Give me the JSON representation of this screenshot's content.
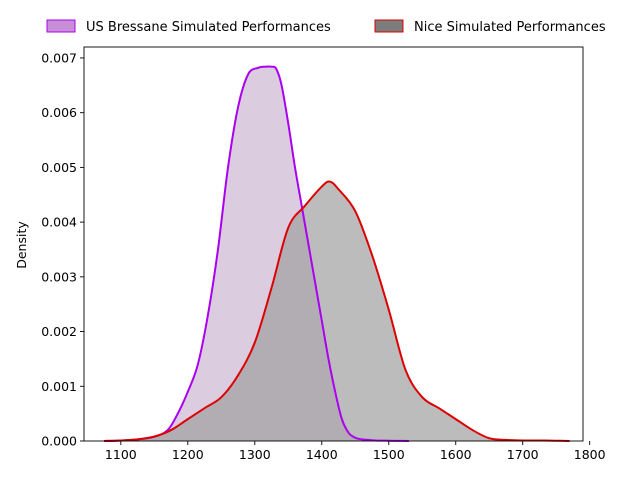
{
  "chart_data": {
    "type": "area",
    "title": "",
    "xlabel": "",
    "ylabel": "Density",
    "xlim": [
      1045,
      1790
    ],
    "ylim": [
      0,
      0.0072
    ],
    "xticks": [
      1100,
      1200,
      1300,
      1400,
      1500,
      1600,
      1700,
      1800
    ],
    "yticks": [
      0,
      0.001,
      0.002,
      0.003,
      0.004,
      0.005,
      0.006,
      0.007
    ],
    "xtick_labels": [
      "1100",
      "1200",
      "1300",
      "1400",
      "1500",
      "1600",
      "1700",
      "1800"
    ],
    "ytick_labels": [
      "0.000",
      "0.001",
      "0.002",
      "0.003",
      "0.004",
      "0.005",
      "0.006",
      "0.007"
    ],
    "grid": false,
    "legend_position": "top-center, outside plot",
    "series": [
      {
        "name": "US Bressane Simulated Performances",
        "line_color": "#aa00ee",
        "fill_color": "#dbcce0",
        "legend_fill": "#c88fd8",
        "x": [
          1075,
          1100,
          1125,
          1150,
          1170,
          1185,
          1200,
          1215,
          1230,
          1245,
          1260,
          1275,
          1290,
          1305,
          1315,
          1325,
          1332,
          1340,
          1350,
          1360,
          1370,
          1380,
          1390,
          1400,
          1410,
          1420,
          1430,
          1440,
          1450,
          1460,
          1470,
          1480,
          1500,
          1515,
          1530
        ],
        "y": [
          0,
          1e-05,
          3e-05,
          8e-05,
          0.0002,
          0.0005,
          0.0009,
          0.0014,
          0.0023,
          0.0035,
          0.005,
          0.0061,
          0.0067,
          0.00682,
          0.00684,
          0.00684,
          0.0068,
          0.0065,
          0.0058,
          0.005,
          0.0043,
          0.0036,
          0.0029,
          0.0022,
          0.0015,
          0.0009,
          0.0004,
          0.00015,
          6e-05,
          3e-05,
          2e-05,
          1e-05,
          5e-06,
          2e-06,
          0
        ]
      },
      {
        "name": "Nice Simulated Performances",
        "line_color": "#dd0000",
        "fill_color": "#a0a0a0",
        "legend_fill": "#7c7c7c",
        "x": [
          1075,
          1100,
          1125,
          1150,
          1175,
          1200,
          1225,
          1250,
          1275,
          1300,
          1325,
          1350,
          1375,
          1400,
          1412,
          1425,
          1450,
          1475,
          1500,
          1525,
          1550,
          1575,
          1600,
          1625,
          1650,
          1675,
          1700,
          1725,
          1750,
          1770
        ],
        "y": [
          0,
          1e-05,
          3e-05,
          8e-05,
          0.0002,
          0.0004,
          0.0006,
          0.0008,
          0.0012,
          0.0018,
          0.0028,
          0.0039,
          0.0043,
          0.00465,
          0.00474,
          0.0046,
          0.0042,
          0.0034,
          0.0024,
          0.0013,
          0.0008,
          0.0006,
          0.0004,
          0.0002,
          5e-05,
          2e-05,
          1e-05,
          1e-05,
          5e-06,
          0
        ]
      }
    ]
  }
}
